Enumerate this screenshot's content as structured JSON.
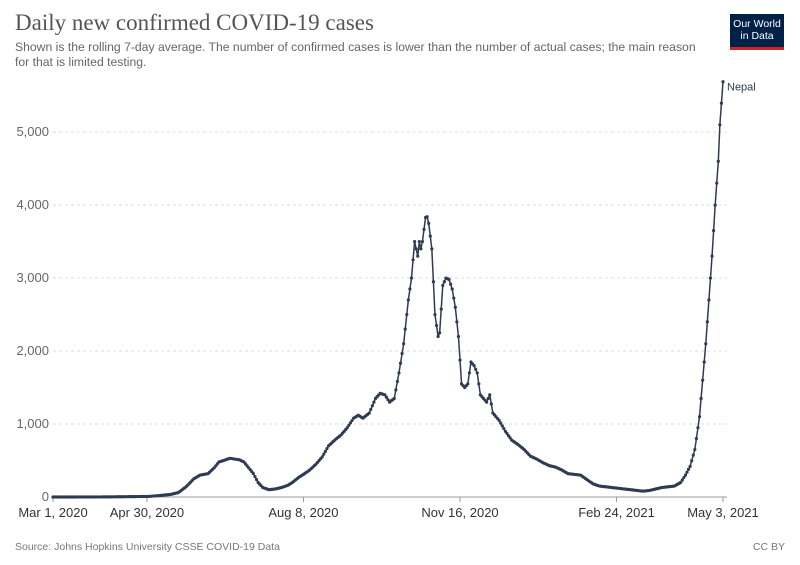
{
  "header": {
    "title": "Daily new confirmed COVID-19 cases",
    "subtitle": "Shown is the rolling 7-day average. The number of confirmed cases is lower than the number of actual cases; the main reason for that is limited testing."
  },
  "logo": {
    "line1": "Our World",
    "line2": "in Data",
    "bg_color": "#002147",
    "accent_color": "#ce261e"
  },
  "footer": {
    "source": "Source: Johns Hopkins University CSSE COVID-19 Data",
    "license": "CC BY"
  },
  "chart_data": {
    "type": "line",
    "title": "Daily new confirmed COVID-19 cases",
    "xlabel": "",
    "ylabel": "",
    "x_range": [
      "2020-03-01",
      "2021-05-03"
    ],
    "ylim": [
      0,
      5700
    ],
    "y_ticks": [
      0,
      1000,
      2000,
      3000,
      4000,
      5000
    ],
    "y_tick_labels": [
      "0",
      "1,000",
      "2,000",
      "3,000",
      "4,000",
      "5,000"
    ],
    "x_ticks": [
      "2020-03-01",
      "2020-04-30",
      "2020-08-08",
      "2020-11-16",
      "2021-02-24",
      "2021-05-03"
    ],
    "x_tick_labels": [
      "Mar 1, 2020",
      "Apr 30, 2020",
      "Aug 8, 2020",
      "Nov 16, 2020",
      "Feb 24, 2021",
      "May 3, 2021"
    ],
    "grid": "horizontal dashed",
    "series": [
      {
        "name": "Nepal",
        "color": "#2f3b50",
        "points": [
          [
            "2020-03-01",
            0
          ],
          [
            "2020-04-01",
            1
          ],
          [
            "2020-04-20",
            5
          ],
          [
            "2020-05-01",
            8
          ],
          [
            "2020-05-08",
            20
          ],
          [
            "2020-05-15",
            35
          ],
          [
            "2020-05-20",
            60
          ],
          [
            "2020-05-25",
            140
          ],
          [
            "2020-05-30",
            250
          ],
          [
            "2020-06-03",
            300
          ],
          [
            "2020-06-08",
            320
          ],
          [
            "2020-06-12",
            400
          ],
          [
            "2020-06-15",
            480
          ],
          [
            "2020-06-18",
            500
          ],
          [
            "2020-06-22",
            530
          ],
          [
            "2020-06-25",
            520
          ],
          [
            "2020-06-28",
            510
          ],
          [
            "2020-07-01",
            480
          ],
          [
            "2020-07-04",
            400
          ],
          [
            "2020-07-07",
            320
          ],
          [
            "2020-07-10",
            200
          ],
          [
            "2020-07-13",
            130
          ],
          [
            "2020-07-17",
            100
          ],
          [
            "2020-07-21",
            110
          ],
          [
            "2020-07-25",
            130
          ],
          [
            "2020-07-29",
            160
          ],
          [
            "2020-08-01",
            200
          ],
          [
            "2020-08-05",
            270
          ],
          [
            "2020-08-08",
            310
          ],
          [
            "2020-08-12",
            370
          ],
          [
            "2020-08-16",
            450
          ],
          [
            "2020-08-20",
            550
          ],
          [
            "2020-08-24",
            700
          ],
          [
            "2020-08-28",
            780
          ],
          [
            "2020-09-01",
            850
          ],
          [
            "2020-09-05",
            950
          ],
          [
            "2020-09-09",
            1080
          ],
          [
            "2020-09-12",
            1120
          ],
          [
            "2020-09-15",
            1080
          ],
          [
            "2020-09-19",
            1150
          ],
          [
            "2020-09-23",
            1350
          ],
          [
            "2020-09-26",
            1420
          ],
          [
            "2020-09-29",
            1400
          ],
          [
            "2020-10-02",
            1300
          ],
          [
            "2020-10-05",
            1350
          ],
          [
            "2020-10-08",
            1700
          ],
          [
            "2020-10-11",
            2100
          ],
          [
            "2020-10-14",
            2700
          ],
          [
            "2020-10-16",
            3000
          ],
          [
            "2020-10-18",
            3500
          ],
          [
            "2020-10-20",
            3300
          ],
          [
            "2020-10-21",
            3500
          ],
          [
            "2020-10-22",
            3400
          ],
          [
            "2020-10-23",
            3500
          ],
          [
            "2020-10-25",
            3830
          ],
          [
            "2020-10-26",
            3840
          ],
          [
            "2020-10-27",
            3750
          ],
          [
            "2020-10-29",
            3400
          ],
          [
            "2020-10-31",
            2500
          ],
          [
            "2020-11-02",
            2200
          ],
          [
            "2020-11-03",
            2250
          ],
          [
            "2020-11-05",
            2900
          ],
          [
            "2020-11-07",
            3000
          ],
          [
            "2020-11-09",
            2980
          ],
          [
            "2020-11-11",
            2850
          ],
          [
            "2020-11-13",
            2600
          ],
          [
            "2020-11-15",
            2200
          ],
          [
            "2020-11-17",
            1550
          ],
          [
            "2020-11-19",
            1500
          ],
          [
            "2020-11-21",
            1550
          ],
          [
            "2020-11-23",
            1850
          ],
          [
            "2020-11-25",
            1800
          ],
          [
            "2020-11-27",
            1700
          ],
          [
            "2020-11-29",
            1400
          ],
          [
            "2020-12-01",
            1350
          ],
          [
            "2020-12-03",
            1300
          ],
          [
            "2020-12-05",
            1400
          ],
          [
            "2020-12-07",
            1150
          ],
          [
            "2020-12-11",
            1050
          ],
          [
            "2020-12-15",
            900
          ],
          [
            "2020-12-19",
            780
          ],
          [
            "2020-12-23",
            720
          ],
          [
            "2020-12-27",
            650
          ],
          [
            "2020-12-31",
            560
          ],
          [
            "2021-01-04",
            520
          ],
          [
            "2021-01-08",
            470
          ],
          [
            "2021-01-12",
            430
          ],
          [
            "2021-01-16",
            410
          ],
          [
            "2021-01-20",
            370
          ],
          [
            "2021-01-24",
            320
          ],
          [
            "2021-01-28",
            310
          ],
          [
            "2021-02-01",
            300
          ],
          [
            "2021-02-05",
            240
          ],
          [
            "2021-02-09",
            180
          ],
          [
            "2021-02-13",
            150
          ],
          [
            "2021-02-17",
            140
          ],
          [
            "2021-02-21",
            130
          ],
          [
            "2021-02-25",
            120
          ],
          [
            "2021-03-01",
            110
          ],
          [
            "2021-03-05",
            100
          ],
          [
            "2021-03-09",
            90
          ],
          [
            "2021-03-13",
            80
          ],
          [
            "2021-03-17",
            90
          ],
          [
            "2021-03-21",
            110
          ],
          [
            "2021-03-25",
            130
          ],
          [
            "2021-03-29",
            140
          ],
          [
            "2021-04-02",
            150
          ],
          [
            "2021-04-06",
            200
          ],
          [
            "2021-04-09",
            300
          ],
          [
            "2021-04-12",
            420
          ],
          [
            "2021-04-15",
            650
          ],
          [
            "2021-04-18",
            1100
          ],
          [
            "2021-04-20",
            1600
          ],
          [
            "2021-04-22",
            2100
          ],
          [
            "2021-04-24",
            2700
          ],
          [
            "2021-04-26",
            3300
          ],
          [
            "2021-04-28",
            4000
          ],
          [
            "2021-04-30",
            4600
          ],
          [
            "2021-05-01",
            5100
          ],
          [
            "2021-05-03",
            5690
          ]
        ]
      }
    ]
  }
}
